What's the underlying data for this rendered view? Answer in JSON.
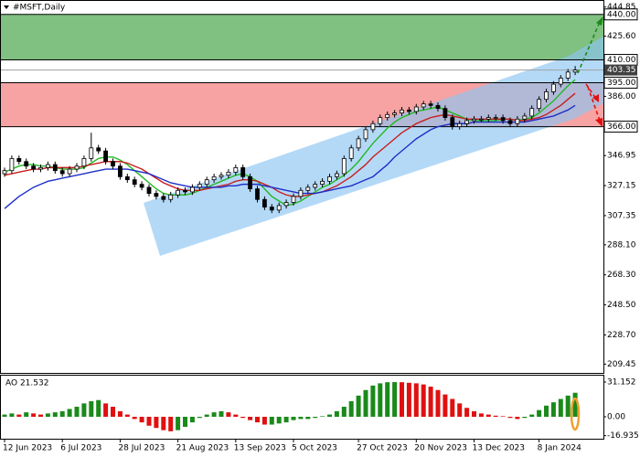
{
  "chart_data": [
    {
      "type": "candlestick",
      "title": "#MSFT,Daily",
      "categories": [
        "12 Jun 2023",
        null,
        null,
        null,
        null,
        null,
        null,
        null,
        "6 Jul 2023",
        null,
        null,
        null,
        null,
        null,
        null,
        null,
        "28 Jul 2023",
        null,
        null,
        null,
        null,
        null,
        null,
        null,
        "21 Aug 2023",
        null,
        null,
        null,
        null,
        null,
        null,
        null,
        "13 Sep 2023",
        null,
        null,
        null,
        null,
        null,
        null,
        null,
        "5 Oct 2023",
        null,
        null,
        null,
        null,
        null,
        null,
        null,
        null,
        "27 Oct 2023",
        null,
        null,
        null,
        null,
        null,
        null,
        null,
        "20 Nov 2023",
        null,
        null,
        null,
        null,
        null,
        null,
        null,
        "13 Dec 2023",
        null,
        null,
        null,
        null,
        null,
        null,
        null,
        null,
        "8 Jan 2024",
        null,
        null,
        null,
        null,
        null
      ],
      "open": [
        335,
        337,
        345,
        343,
        340,
        338,
        339,
        341,
        337,
        335,
        338,
        340,
        345,
        352,
        350,
        343,
        340,
        333,
        331,
        328,
        326,
        322,
        320,
        318,
        321,
        324,
        323,
        326,
        328,
        331,
        333,
        334,
        336,
        339,
        333,
        325,
        318,
        313,
        311,
        314,
        316,
        320,
        324,
        326,
        328,
        330,
        333,
        335,
        345,
        352,
        358,
        364,
        368,
        372,
        374,
        375,
        377,
        376,
        379,
        381,
        380,
        378,
        372,
        366,
        368,
        370,
        371,
        371,
        372,
        372,
        370,
        368,
        371,
        373,
        378,
        384,
        389,
        394,
        398,
        402
      ],
      "high": [
        339,
        347,
        347,
        345,
        342,
        341,
        343,
        343,
        339,
        340,
        342,
        347,
        362,
        354,
        352,
        345,
        342,
        335,
        333,
        330,
        328,
        324,
        322,
        323,
        326,
        326,
        328,
        330,
        333,
        335,
        336,
        338,
        341,
        341,
        335,
        327,
        320,
        315,
        316,
        318,
        322,
        326,
        328,
        330,
        332,
        335,
        337,
        347,
        354,
        360,
        366,
        370,
        374,
        376,
        377,
        379,
        379,
        381,
        383,
        383,
        382,
        380,
        374,
        370,
        372,
        373,
        373,
        374,
        374,
        374,
        372,
        373,
        375,
        380,
        386,
        391,
        396,
        400,
        404,
        406
      ],
      "low": [
        333,
        335,
        341,
        338,
        336,
        336,
        337,
        335,
        333,
        333,
        336,
        338,
        343,
        348,
        341,
        338,
        331,
        329,
        326,
        324,
        320,
        318,
        316,
        316,
        319,
        321,
        321,
        324,
        326,
        329,
        331,
        332,
        334,
        331,
        323,
        316,
        311,
        309,
        309,
        312,
        314,
        318,
        322,
        324,
        326,
        328,
        331,
        333,
        343,
        350,
        356,
        362,
        366,
        370,
        372,
        373,
        374,
        374,
        377,
        378,
        376,
        370,
        364,
        364,
        366,
        368,
        369,
        369,
        370,
        368,
        366,
        366,
        369,
        371,
        376,
        382,
        387,
        392,
        396,
        400
      ],
      "close": [
        337,
        345,
        343,
        340,
        338,
        339,
        341,
        337,
        335,
        338,
        340,
        345,
        352,
        350,
        343,
        340,
        333,
        331,
        328,
        326,
        322,
        320,
        318,
        321,
        324,
        323,
        326,
        328,
        331,
        333,
        334,
        336,
        339,
        333,
        325,
        318,
        313,
        311,
        314,
        316,
        320,
        324,
        326,
        328,
        330,
        333,
        335,
        345,
        352,
        358,
        364,
        368,
        372,
        374,
        375,
        377,
        376,
        379,
        381,
        380,
        378,
        372,
        366,
        368,
        370,
        371,
        371,
        372,
        372,
        370,
        368,
        371,
        373,
        378,
        384,
        389,
        394,
        398,
        402,
        403.35
      ],
      "series": [
        {
          "color": "#22b822",
          "values": [
            336,
            338,
            340,
            341,
            341,
            340,
            340,
            339,
            338,
            338,
            338,
            339,
            342,
            345,
            346,
            346,
            344,
            341,
            337,
            333,
            329,
            325,
            322,
            321,
            321,
            321,
            322,
            324,
            326,
            328,
            330,
            332,
            334,
            335,
            333,
            330,
            325,
            320,
            317,
            314,
            315,
            317,
            320,
            323,
            326,
            328,
            331,
            334,
            338,
            343,
            349,
            355,
            360,
            365,
            369,
            372,
            374,
            376,
            377,
            378,
            379,
            377,
            375,
            373,
            371,
            370,
            370,
            370,
            370,
            371,
            371,
            370,
            371,
            372,
            375,
            379,
            383,
            388,
            393,
            397
          ]
        },
        {
          "color": "#c81e1e",
          "values": [
            334,
            335,
            336,
            337,
            338,
            338,
            339,
            339,
            339,
            339,
            339,
            340,
            341,
            342,
            343,
            343,
            343,
            342,
            340,
            338,
            335,
            332,
            329,
            327,
            325,
            324,
            324,
            324,
            325,
            326,
            327,
            328,
            330,
            331,
            331,
            330,
            328,
            326,
            323,
            321,
            320,
            320,
            321,
            322,
            323,
            325,
            327,
            330,
            333,
            337,
            341,
            346,
            350,
            354,
            358,
            362,
            365,
            368,
            370,
            372,
            373,
            374,
            373,
            372,
            371,
            371,
            371,
            371,
            371,
            371,
            371,
            370,
            370,
            371,
            372,
            374,
            377,
            380,
            384,
            388
          ]
        },
        {
          "color": "#1e2fc8",
          "values": [
            312,
            316,
            320,
            323,
            326,
            328,
            330,
            331,
            332,
            333,
            334,
            335,
            336,
            337,
            338,
            338,
            338,
            338,
            337,
            336,
            335,
            333,
            331,
            329,
            328,
            327,
            326,
            326,
            326,
            326,
            326,
            327,
            327,
            328,
            328,
            328,
            327,
            326,
            325,
            324,
            323,
            322,
            322,
            322,
            323,
            324,
            325,
            326,
            327,
            329,
            331,
            333,
            337,
            341,
            346,
            350,
            354,
            358,
            361,
            364,
            366,
            367,
            368,
            368,
            368,
            369,
            369,
            369,
            369,
            369,
            369,
            369,
            369,
            370,
            371,
            372,
            373,
            375,
            377,
            380
          ]
        }
      ],
      "ylim": [
        203.65,
        449.5
      ],
      "yticks": [
        444.85,
        {
          "value": 425.6,
          "label": "425.60"
        },
        {
          "value": 386,
          "label": "386.00"
        },
        346.95,
        327.15,
        307.35,
        {
          "value": 288.1,
          "label": "288.10"
        },
        {
          "value": 268.3,
          "label": "268.30"
        },
        {
          "value": 248.5,
          "label": "248.50"
        },
        {
          "value": 228.7,
          "label": "228.70"
        },
        209.45
      ],
      "levels": [
        {
          "value": 440,
          "label": "440.00"
        },
        {
          "value": 410,
          "label": "410.00"
        },
        {
          "value": 395,
          "label": "395.00"
        },
        {
          "value": 366,
          "label": "366.00"
        }
      ],
      "zone_colors": [
        "#80c080",
        "#f7a3a3"
      ],
      "last_price": 403.35
    },
    {
      "type": "bar",
      "title": "AO 21.532",
      "values": [
        2,
        3,
        2,
        4,
        3,
        2,
        3,
        4,
        5,
        7,
        9,
        12,
        14,
        15,
        12,
        9,
        5,
        2,
        -2,
        -5,
        -8,
        -10,
        -12,
        -13,
        -12,
        -9,
        -5,
        -1,
        2,
        4,
        5,
        4,
        2,
        -1,
        -3,
        -5,
        -7,
        -7,
        -6,
        -5,
        -3,
        -2,
        -2,
        -1,
        0.5,
        2,
        5,
        9,
        14,
        19,
        24,
        28,
        30,
        31,
        31.1,
        31,
        30.5,
        30,
        29,
        27,
        24,
        20,
        16,
        12,
        8,
        5,
        3,
        2,
        1,
        0.5,
        -1,
        -2,
        -1,
        2,
        6,
        10,
        13,
        16,
        19,
        21.532
      ],
      "up_color": "#1a8a1a",
      "down_color": "#e01010",
      "ylim": [
        -19.67,
        37.7
      ],
      "yticks": [
        31.152,
        {
          "value": 0,
          "label": "0.00"
        },
        -16.935
      ]
    }
  ]
}
